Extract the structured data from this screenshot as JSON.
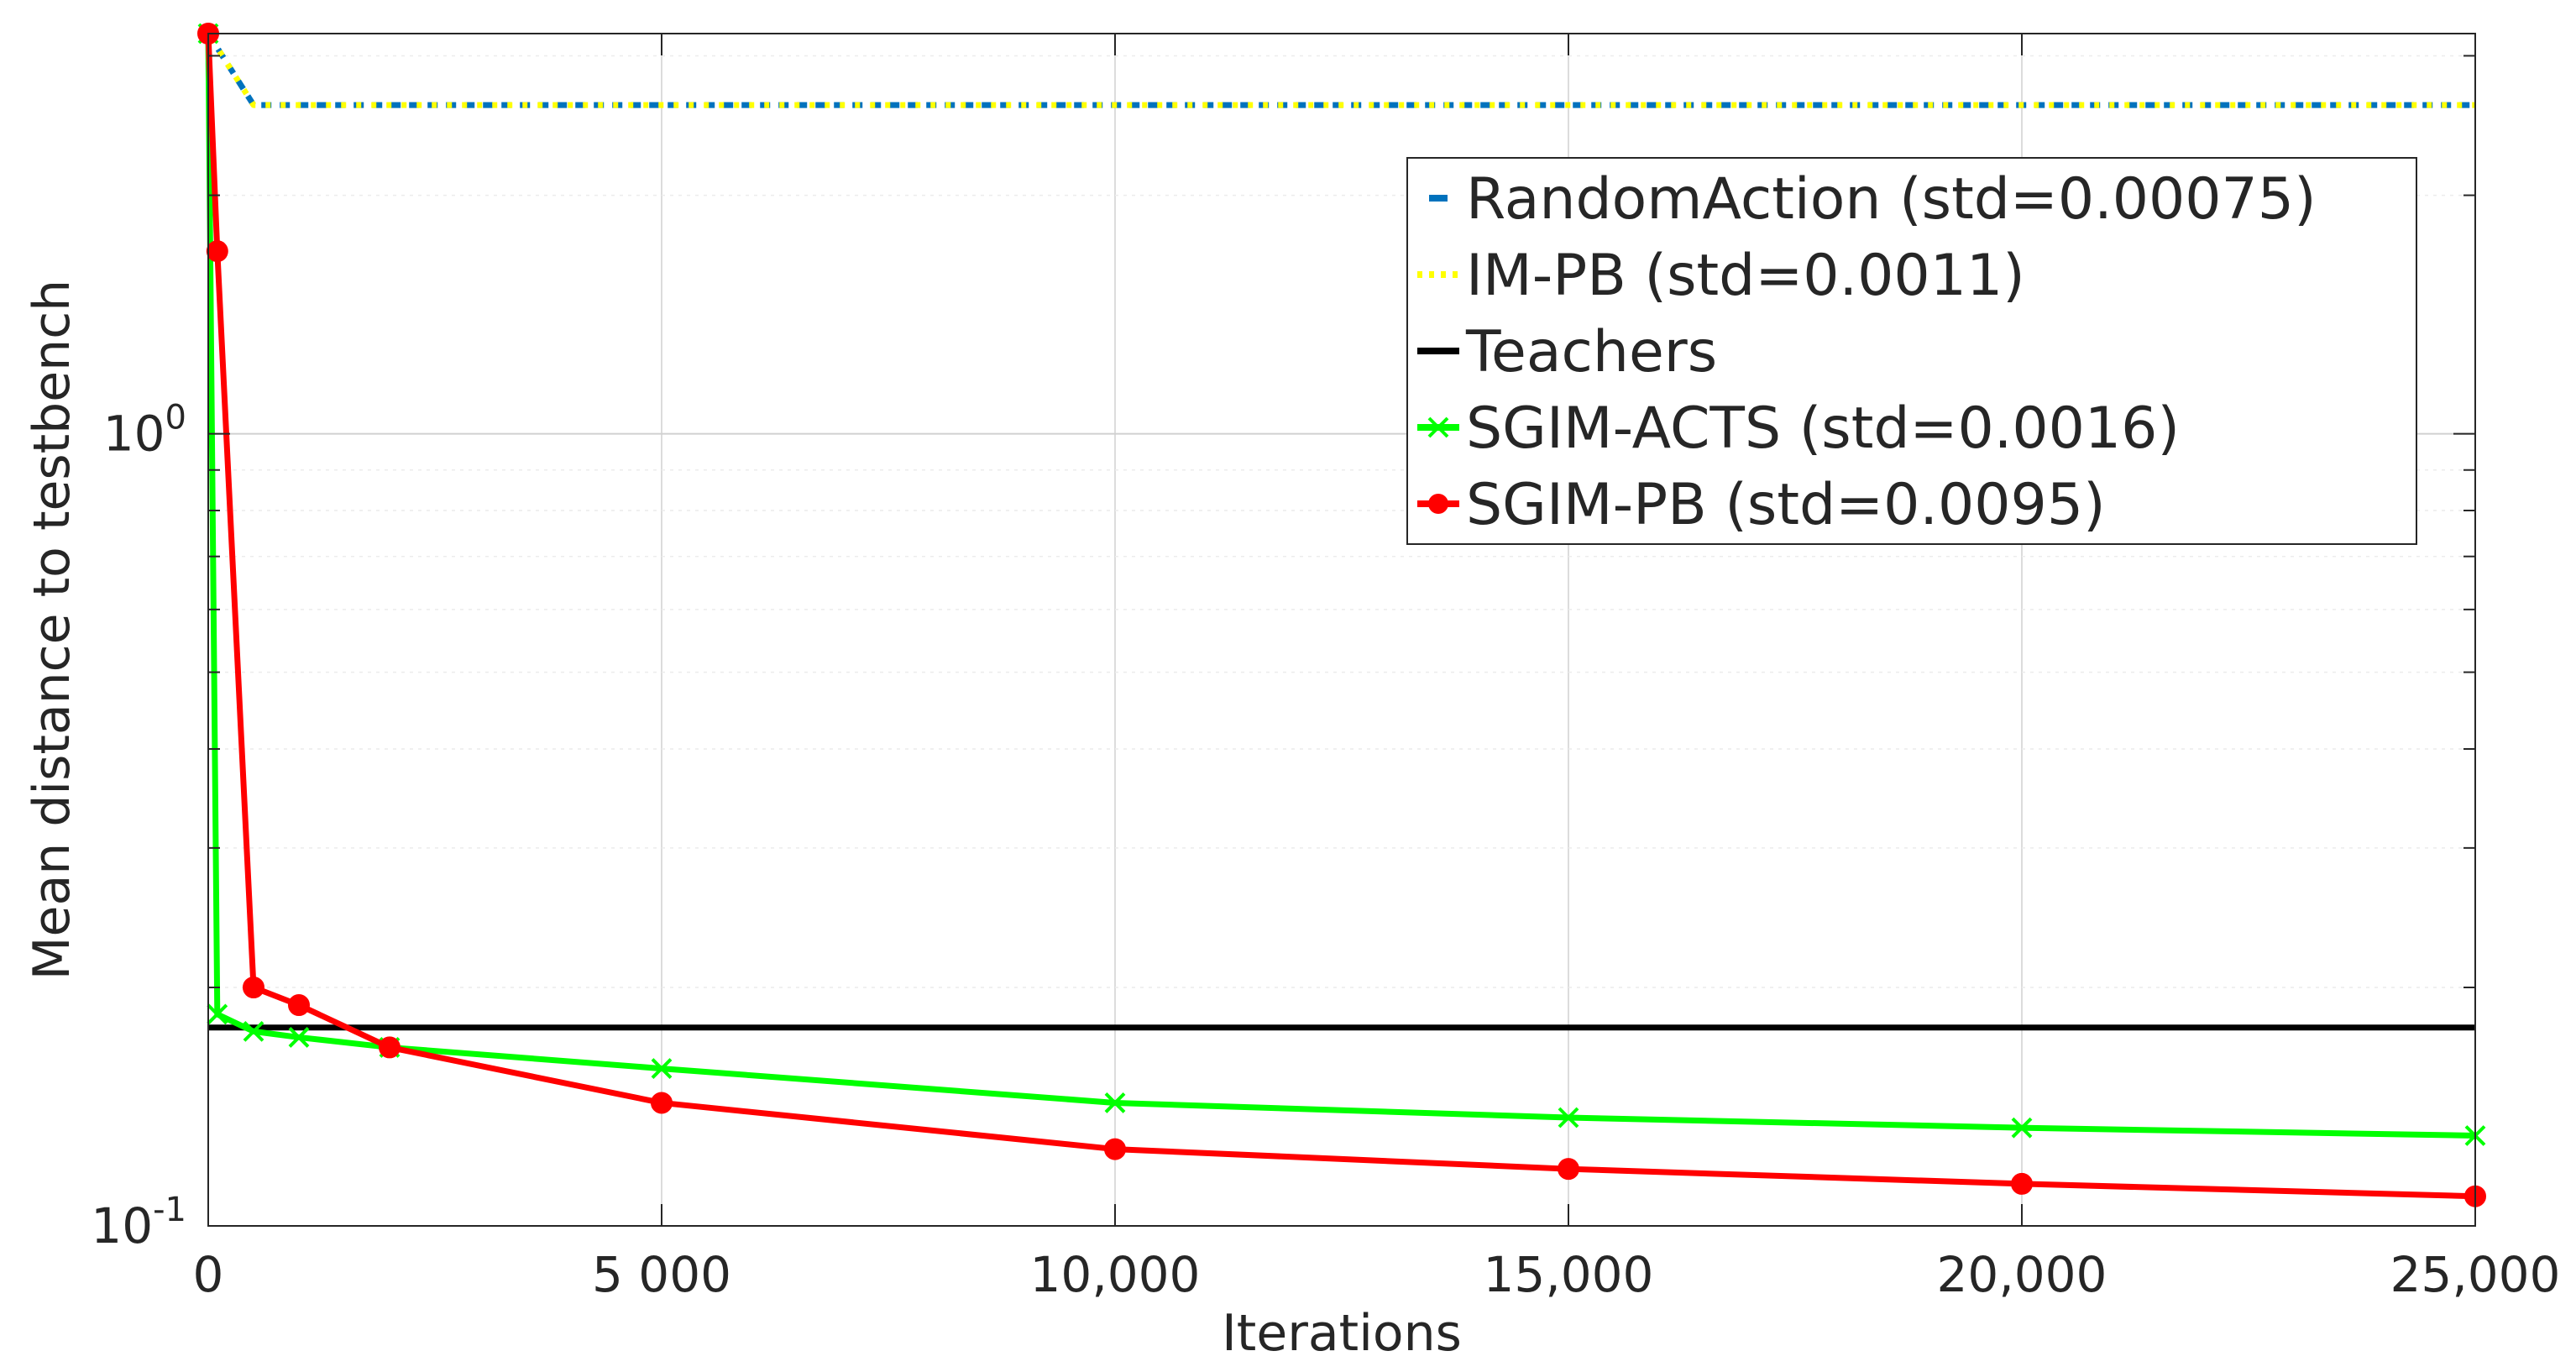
{
  "chart_data": {
    "type": "line",
    "xlabel": "Iterations",
    "ylabel": "Mean distance to testbench",
    "yscale": "log",
    "xlim": [
      0,
      25000
    ],
    "ylim": [
      0.1,
      3.2
    ],
    "grid": true,
    "legend_position": "top-right",
    "x_ticks": [
      {
        "value": 0,
        "label": "0"
      },
      {
        "value": 5000,
        "label": "5 000"
      },
      {
        "value": 10000,
        "label": "10,000"
      },
      {
        "value": 15000,
        "label": "15,000"
      },
      {
        "value": 20000,
        "label": "20,000"
      },
      {
        "value": 25000,
        "label": "25,000"
      }
    ],
    "y_ticks": [
      {
        "value": 1,
        "base": "10",
        "exp": "0"
      },
      {
        "value": 0.1,
        "base": "10",
        "exp": "-1"
      }
    ],
    "series": [
      {
        "name": "RandomAction (std=0.00075)",
        "color": "#0072BD",
        "style": "dash",
        "marker": "none",
        "x": [
          0,
          500,
          1000,
          2000,
          5000,
          10000,
          15000,
          20000,
          25000
        ],
        "y": [
          3.2,
          2.6,
          2.6,
          2.6,
          2.6,
          2.6,
          2.6,
          2.6,
          2.6
        ]
      },
      {
        "name": "IM-PB (std=0.0011)",
        "color": "#FFFF00",
        "style": "dot",
        "marker": "none",
        "x": [
          0,
          500,
          1000,
          2000,
          5000,
          10000,
          15000,
          20000,
          25000
        ],
        "y": [
          3.2,
          2.6,
          2.6,
          2.6,
          2.6,
          2.6,
          2.6,
          2.6,
          2.6
        ]
      },
      {
        "name": "Teachers",
        "color": "#000000",
        "style": "solid",
        "marker": "none",
        "x": [
          0,
          25000
        ],
        "y": [
          0.178,
          0.178
        ]
      },
      {
        "name": "SGIM-ACTS (std=0.0016)",
        "color": "#00FF00",
        "style": "solid",
        "marker": "x",
        "x": [
          0,
          100,
          500,
          1000,
          2000,
          5000,
          10000,
          15000,
          20000,
          25000
        ],
        "y": [
          3.2,
          0.185,
          0.176,
          0.173,
          0.168,
          0.158,
          0.143,
          0.137,
          0.133,
          0.13
        ]
      },
      {
        "name": "SGIM-PB (std=0.0095)",
        "color": "#FF0000",
        "style": "solid",
        "marker": "o",
        "x": [
          0,
          100,
          500,
          1000,
          2000,
          5000,
          10000,
          15000,
          20000,
          25000
        ],
        "y": [
          3.2,
          1.7,
          0.2,
          0.19,
          0.168,
          0.143,
          0.125,
          0.118,
          0.113,
          0.109
        ]
      }
    ]
  }
}
